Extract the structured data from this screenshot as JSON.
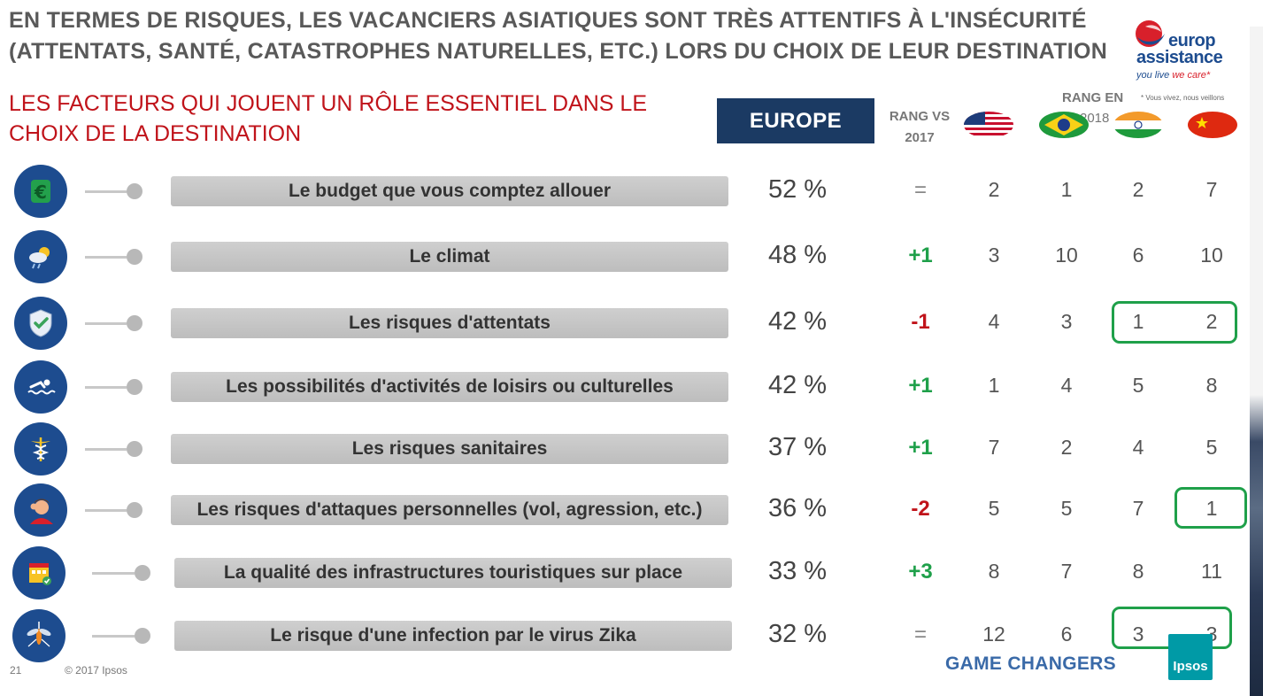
{
  "title": "EN TERMES DE RISQUES, LES VACANCIERS ASIATIQUES SONT TRÈS ATTENTIFS À L'INSÉCURITÉ (ATTENTATS, SANTÉ, CATASTROPHES NATURELLES, ETC.) LORS DU CHOIX DE LEUR DESTINATION",
  "subtitle": "LES FACTEURS QUI JOUENT UN RÔLE ESSENTIEL DANS LE CHOIX DE LA DESTINATION",
  "brand": {
    "name_line1": "europ",
    "name_line2": "assistance",
    "tagline_main": "you live ",
    "tagline_accent": "we care*",
    "legal": "* Vous vivez, nous veillons"
  },
  "header": {
    "europe_label": "EUROPE",
    "rang_vs_line1": "RANG VS",
    "rang_vs_line2": "2017",
    "rang_en_label": "RANG EN",
    "rang_en_year": "2018",
    "countries": [
      "usa-flag-icon",
      "brazil-flag-icon",
      "india-flag-icon",
      "china-flag-icon"
    ]
  },
  "rows": [
    {
      "icon": "euro-icon",
      "label": "Le budget que vous comptez allouer",
      "pct": "52 %",
      "rank_change": "=",
      "change_type": "neutral",
      "ranks": [
        "2",
        "1",
        "2",
        "7"
      ]
    },
    {
      "icon": "weather-icon",
      "label": "Le climat",
      "pct": "48 %",
      "rank_change": "+1",
      "change_type": "up",
      "ranks": [
        "3",
        "10",
        "6",
        "10"
      ]
    },
    {
      "icon": "shield-icon",
      "label": "Les risques d'attentats",
      "pct": "42 %",
      "rank_change": "-1",
      "change_type": "down",
      "ranks": [
        "4",
        "3",
        "1",
        "2"
      ]
    },
    {
      "icon": "swimmer-icon",
      "label": "Les possibilités d'activités de loisirs ou culturelles",
      "pct": "42 %",
      "rank_change": "+1",
      "change_type": "up",
      "ranks": [
        "1",
        "4",
        "5",
        "8"
      ]
    },
    {
      "icon": "caduceus-icon",
      "label": "Les risques sanitaires",
      "pct": "37 %",
      "rank_change": "+1",
      "change_type": "up",
      "ranks": [
        "7",
        "2",
        "4",
        "5"
      ]
    },
    {
      "icon": "injured-person-icon",
      "label": "Les risques d'attaques personnelles (vol, agression, etc.)",
      "pct": "36 %",
      "rank_change": "-2",
      "change_type": "down",
      "ranks": [
        "5",
        "5",
        "7",
        "1"
      ]
    },
    {
      "icon": "hotel-building-icon",
      "label": "La qualité des infrastructures touristiques sur place",
      "pct": "33 %",
      "rank_change": "+3",
      "change_type": "up",
      "ranks": [
        "8",
        "7",
        "8",
        "11"
      ]
    },
    {
      "icon": "mosquito-icon",
      "label": "Le risque d'une infection par le virus Zika",
      "pct": "32 %",
      "rank_change": "=",
      "change_type": "neutral",
      "ranks": [
        "12",
        "6",
        "3",
        "3"
      ]
    }
  ],
  "colors": {
    "up": "#1fa04a",
    "down": "#c0131a",
    "neutral": "#888888"
  },
  "footer": {
    "page_number": "21",
    "copyright": "© 2017 Ipsos",
    "tagline": "GAME CHANGERS",
    "ipsos_logo": "Ipsos"
  }
}
